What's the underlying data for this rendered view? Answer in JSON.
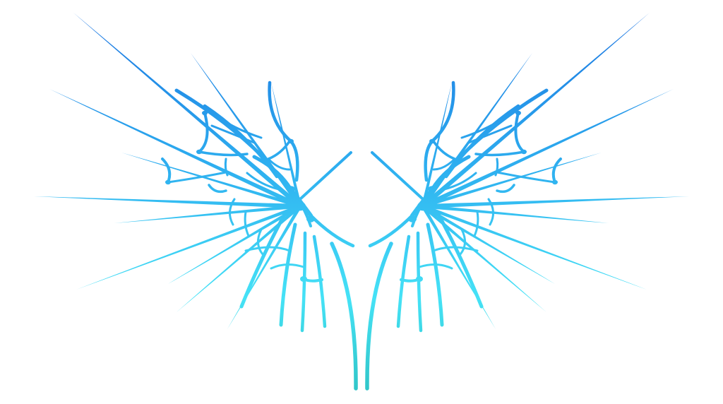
{
  "image": {
    "subject": "wings-artwork",
    "background_color": "#ffffff",
    "colors": {
      "top": "#1a72e0",
      "middle": "#2eb0f0",
      "bottom": "#45e2f6",
      "tail": "#2fc4c6"
    }
  }
}
